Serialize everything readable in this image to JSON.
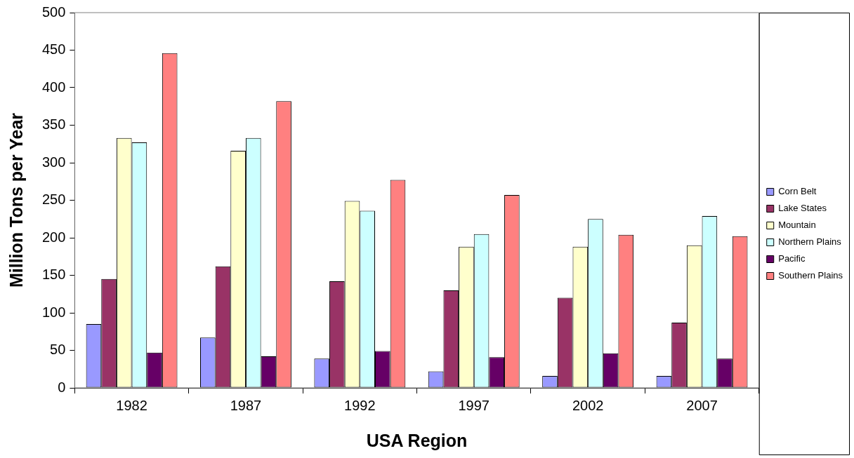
{
  "chart_data": {
    "type": "bar",
    "xlabel": "USA Region",
    "ylabel": "Million Tons per Year",
    "categories": [
      "1982",
      "1987",
      "1992",
      "1997",
      "2002",
      "2007"
    ],
    "series": [
      {
        "name": "Corn Belt",
        "color": "#9999ff",
        "values": [
          85,
          67,
          39,
          22,
          16,
          16
        ]
      },
      {
        "name": "Lake States",
        "color": "#993366",
        "values": [
          145,
          162,
          142,
          130,
          120,
          87
        ]
      },
      {
        "name": "Mountain",
        "color": "#ffffcc",
        "values": [
          333,
          316,
          249,
          188,
          188,
          190
        ]
      },
      {
        "name": "Northern Plains",
        "color": "#ccffff",
        "values": [
          327,
          333,
          236,
          205,
          225,
          229
        ]
      },
      {
        "name": "Pacific",
        "color": "#660066",
        "values": [
          47,
          42,
          49,
          41,
          46,
          39
        ]
      },
      {
        "name": "Southern Plains",
        "color": "#ff8080",
        "values": [
          446,
          382,
          277,
          257,
          204,
          202
        ]
      }
    ],
    "ylim": [
      0,
      500
    ],
    "yticks": [
      0,
      50,
      100,
      150,
      200,
      250,
      300,
      350,
      400,
      450,
      500
    ],
    "grid": false,
    "legend": "right"
  }
}
